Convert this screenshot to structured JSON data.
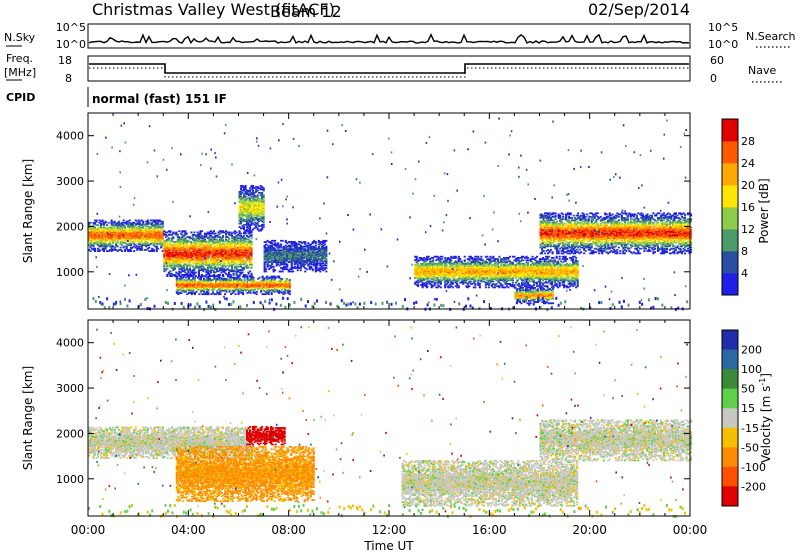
{
  "header": {
    "title": "Christmas Valley West (fitACF)",
    "beam": "Beam 12",
    "date": "02/Sep/2014"
  },
  "top_panels": {
    "nsky_label": "N.Sky",
    "nsky_ticks": [
      "10^5",
      "10^0"
    ],
    "nsearch_label": "N.Search",
    "freq_label": "Freq.",
    "freq_unit": "[MHz]",
    "freq_ticks": [
      "18",
      "8"
    ],
    "nave_label": "Nave",
    "nave_ticks": [
      "60",
      "0"
    ],
    "cpid_label": "CPID",
    "cpid_value": "normal (fast) 151 IF"
  },
  "colors": {
    "power": [
      "#1f1fe8",
      "#2a4fa0",
      "#4a9a6a",
      "#8ccc4a",
      "#ffe600",
      "#ffa800",
      "#ff5a00",
      "#e00000"
    ],
    "velocity": [
      "#1e2ea8",
      "#2a6aa0",
      "#3a8a3a",
      "#5fd04a",
      "#c8c8c0",
      "#f5c000",
      "#ff8c00",
      "#ff5000",
      "#e00000"
    ]
  },
  "chart_data": [
    {
      "type": "heatmap",
      "name": "power",
      "xlabel": "Time UT",
      "ylabel": "Slant Range [km]",
      "xlim": [
        0,
        24
      ],
      "ylim": [
        180,
        4500
      ],
      "x_ticks": [
        "00:00",
        "04:00",
        "08:00",
        "12:00",
        "16:00",
        "20:00",
        "00:00"
      ],
      "y_ticks": [
        "1000",
        "2000",
        "3000",
        "4000"
      ],
      "colorbar": {
        "label": "Power [dB]",
        "ticks": [
          "4",
          "8",
          "12",
          "16",
          "20",
          "24",
          "28"
        ],
        "range": [
          0,
          32
        ]
      },
      "regions": [
        {
          "x": [
            0.0,
            3.0
          ],
          "r": [
            1450,
            2150
          ],
          "peak": 26
        },
        {
          "x": [
            3.0,
            6.5
          ],
          "r": [
            900,
            1900
          ],
          "peak": 28
        },
        {
          "x": [
            3.5,
            8.0
          ],
          "r": [
            500,
            900
          ],
          "peak": 26
        },
        {
          "x": [
            6.0,
            7.0
          ],
          "r": [
            1900,
            2900
          ],
          "peak": 18
        },
        {
          "x": [
            7.0,
            9.5
          ],
          "r": [
            1000,
            1700
          ],
          "peak": 8
        },
        {
          "x": [
            13.0,
            19.5
          ],
          "r": [
            650,
            1350
          ],
          "peak": 22
        },
        {
          "x": [
            17.0,
            18.5
          ],
          "r": [
            300,
            650
          ],
          "peak": 24
        },
        {
          "x": [
            18.0,
            24.0
          ],
          "r": [
            1400,
            2300
          ],
          "peak": 28
        }
      ]
    },
    {
      "type": "heatmap",
      "name": "velocity",
      "xlabel": "Time UT",
      "ylabel": "Slant Range [km]",
      "xlim": [
        0,
        24
      ],
      "ylim": [
        180,
        4500
      ],
      "x_ticks": [
        "00:00",
        "04:00",
        "08:00",
        "12:00",
        "16:00",
        "20:00",
        "00:00"
      ],
      "y_ticks": [
        "1000",
        "2000",
        "3000",
        "4000"
      ],
      "colorbar": {
        "label": "Velocity [m s^-1]",
        "ticks": [
          "200",
          "100",
          "50",
          "15",
          "-15",
          "-50",
          "-100",
          "-200"
        ],
        "range": [
          -250,
          250
        ]
      },
      "regions": [
        {
          "x": [
            0.0,
            6.5
          ],
          "r": [
            1450,
            2150
          ],
          "v": 0
        },
        {
          "x": [
            3.5,
            9.0
          ],
          "r": [
            500,
            1700
          ],
          "v": -60
        },
        {
          "x": [
            6.3,
            7.8
          ],
          "r": [
            1750,
            2150
          ],
          "v": -220
        },
        {
          "x": [
            12.5,
            19.5
          ],
          "r": [
            400,
            1400
          ],
          "v": 0
        },
        {
          "x": [
            18.0,
            24.0
          ],
          "r": [
            1400,
            2300
          ],
          "v": 0
        }
      ]
    }
  ]
}
